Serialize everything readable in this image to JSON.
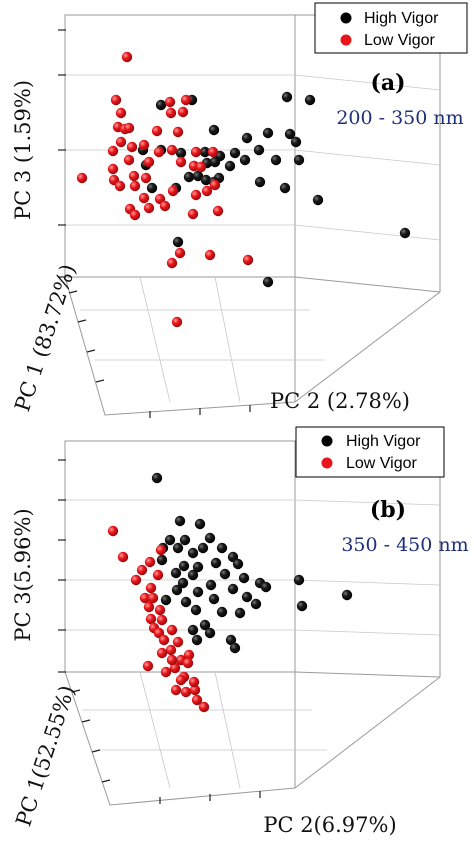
{
  "chart_data": [
    {
      "type": "scatter",
      "panel_label": "(a)",
      "range_label": "200 - 350 nm",
      "xlabel": "PC 2 (2.78%)",
      "ylabel": "PC 3 (1.59%)",
      "zlabel": "PC 1 (83.72%)",
      "legend": {
        "position": "top-right"
      },
      "series": [
        {
          "name": "High Vigor",
          "color": "#000000",
          "points": [
            [
              161,
              105
            ],
            [
              192,
              100
            ],
            [
              287,
              97
            ],
            [
              310,
              100
            ],
            [
              214,
              130
            ],
            [
              247,
              138
            ],
            [
              268,
              133
            ],
            [
              290,
              134
            ],
            [
              296,
              142
            ],
            [
              143,
              150
            ],
            [
              161,
              150
            ],
            [
              181,
              153
            ],
            [
              205,
              152
            ],
            [
              220,
              156
            ],
            [
              235,
              153
            ],
            [
              259,
              150
            ],
            [
              245,
              160
            ],
            [
              276,
              160
            ],
            [
              299,
              160
            ],
            [
              207,
              163
            ],
            [
              194,
              166
            ],
            [
              215,
              162
            ],
            [
              146,
              165
            ],
            [
              230,
              166
            ],
            [
              189,
              177
            ],
            [
              198,
              176
            ],
            [
              219,
              178
            ],
            [
              206,
              180
            ],
            [
              214,
              182
            ],
            [
              260,
              182
            ],
            [
              152,
              188
            ],
            [
              176,
              188
            ],
            [
              285,
              188
            ],
            [
              318,
              200
            ],
            [
              178,
              242
            ],
            [
              405,
              233
            ],
            [
              268,
              282
            ]
          ]
        },
        {
          "name": "Low Vigor",
          "color": "#e8151a",
          "points": [
            [
              127,
              57
            ],
            [
              116,
              100
            ],
            [
              170,
              102
            ],
            [
              186,
              100
            ],
            [
              121,
              113
            ],
            [
              171,
              113
            ],
            [
              183,
              112
            ],
            [
              118,
              127
            ],
            [
              125,
              129
            ],
            [
              129,
              128
            ],
            [
              157,
              131
            ],
            [
              132,
              147
            ],
            [
              178,
              132
            ],
            [
              144,
              145
            ],
            [
              121,
              142
            ],
            [
              172,
              150
            ],
            [
              113,
              151
            ],
            [
              159,
              152
            ],
            [
              196,
              152
            ],
            [
              213,
              152
            ],
            [
              129,
              160
            ],
            [
              149,
              162
            ],
            [
              181,
              162
            ],
            [
              194,
              166
            ],
            [
              113,
              169
            ],
            [
              201,
              167
            ],
            [
              134,
              176
            ],
            [
              82,
              178
            ],
            [
              114,
              180
            ],
            [
              146,
              178
            ],
            [
              120,
              186
            ],
            [
              135,
              186
            ],
            [
              215,
              185
            ],
            [
              173,
              191
            ],
            [
              207,
              191
            ],
            [
              196,
              195
            ],
            [
              144,
              198
            ],
            [
              160,
              199
            ],
            [
              149,
              208
            ],
            [
              130,
              209
            ],
            [
              165,
              206
            ],
            [
              218,
              211
            ],
            [
              193,
              214
            ],
            [
              135,
              215
            ],
            [
              180,
              253
            ],
            [
              210,
              255
            ],
            [
              172,
              263
            ],
            [
              248,
              260
            ],
            [
              177,
              322
            ]
          ]
        }
      ]
    },
    {
      "type": "scatter",
      "panel_label": "(b)",
      "range_label": "350 - 450 nm",
      "xlabel": "PC 2(6.97%)",
      "ylabel": "PC 3(5.96%)",
      "zlabel": "PC 1(52.55%)",
      "legend": {
        "position": "top-right"
      },
      "series": [
        {
          "name": "High Vigor",
          "color": "#000000",
          "points": [
            [
              157,
              478
            ],
            [
              180,
              521
            ],
            [
              200,
              524
            ],
            [
              170,
              540
            ],
            [
              185,
              540
            ],
            [
              210,
              538
            ],
            [
              178,
              548
            ],
            [
              203,
              548
            ],
            [
              222,
              548
            ],
            [
              163,
              548
            ],
            [
              193,
              553
            ],
            [
              233,
              557
            ],
            [
              162,
              560
            ],
            [
              184,
              566
            ],
            [
              198,
              567
            ],
            [
              216,
              563
            ],
            [
              238,
              564
            ],
            [
              176,
              573
            ],
            [
              193,
              575
            ],
            [
              225,
              574
            ],
            [
              244,
              578
            ],
            [
              260,
              583
            ],
            [
              299,
              580
            ],
            [
              183,
              583
            ],
            [
              211,
              585
            ],
            [
              347,
              595
            ],
            [
              177,
              590
            ],
            [
              198,
              592
            ],
            [
              233,
              589
            ],
            [
              266,
              587
            ],
            [
              214,
              599
            ],
            [
              166,
              600
            ],
            [
              186,
              602
            ],
            [
              302,
              606
            ],
            [
              222,
              612
            ],
            [
              196,
              610
            ],
            [
              240,
              613
            ],
            [
              205,
              625
            ],
            [
              193,
              630
            ],
            [
              231,
              640
            ],
            [
              235,
              648
            ],
            [
              210,
              633
            ],
            [
              197,
              640
            ],
            [
              256,
              604
            ],
            [
              247,
              597
            ]
          ]
        },
        {
          "name": "Low Vigor",
          "color": "#e8151a",
          "points": [
            [
              113,
              531
            ],
            [
              123,
              557
            ],
            [
              161,
              550
            ],
            [
              150,
              562
            ],
            [
              142,
              570
            ],
            [
              158,
              575
            ],
            [
              136,
              580
            ],
            [
              151,
              588
            ],
            [
              145,
              598
            ],
            [
              153,
              598
            ],
            [
              149,
              607
            ],
            [
              160,
              610
            ],
            [
              151,
              619
            ],
            [
              162,
              620
            ],
            [
              154,
              628
            ],
            [
              159,
              633
            ],
            [
              172,
              630
            ],
            [
              164,
              640
            ],
            [
              178,
              642
            ],
            [
              171,
              650
            ],
            [
              189,
              655
            ],
            [
              162,
              653
            ],
            [
              181,
              660
            ],
            [
              175,
              668
            ],
            [
              148,
              666
            ],
            [
              184,
              677
            ],
            [
              186,
              692
            ],
            [
              195,
              690
            ],
            [
              204,
              707
            ],
            [
              181,
              680
            ],
            [
              194,
              682
            ],
            [
              172,
              660
            ],
            [
              197,
              700
            ],
            [
              188,
              663
            ],
            [
              166,
              672
            ],
            [
              176,
              690
            ]
          ]
        }
      ]
    }
  ]
}
